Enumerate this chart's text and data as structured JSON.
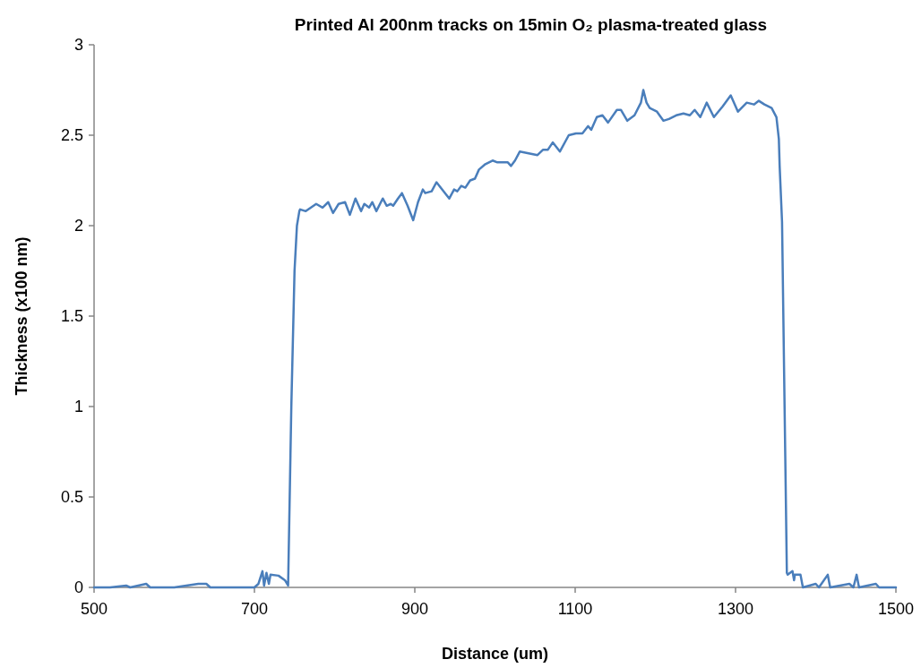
{
  "chart_data": {
    "type": "line",
    "title": "Printed Al 200nm tracks on 15min O₂ plasma-treated glass",
    "xlabel": "Distance (um)",
    "ylabel": "Thickness (x100 nm)",
    "xlim": [
      500,
      1500
    ],
    "xticks": [
      500,
      700,
      900,
      1100,
      1300,
      1500
    ],
    "ylim": [
      0,
      3
    ],
    "yticks": [
      0,
      0.5,
      1,
      1.5,
      2,
      2.5,
      3
    ],
    "grid": false,
    "marker": "none",
    "line_style": "solid",
    "x": [
      500,
      520,
      540,
      545,
      565,
      570,
      600,
      630,
      640,
      645,
      700,
      705,
      710,
      712,
      715,
      718,
      720,
      730,
      738,
      742,
      746,
      750,
      753,
      756,
      757,
      764,
      777,
      785,
      792,
      798,
      805,
      813,
      819,
      826,
      833,
      837,
      843,
      847,
      852,
      860,
      865,
      870,
      873,
      879,
      884,
      891,
      898,
      904,
      910,
      913,
      921,
      927,
      934,
      943,
      949,
      953,
      958,
      963,
      969,
      975,
      980,
      988,
      997,
      1003,
      1016,
      1020,
      1025,
      1031,
      1053,
      1060,
      1066,
      1072,
      1081,
      1092,
      1101,
      1109,
      1116,
      1120,
      1127,
      1134,
      1141,
      1152,
      1157,
      1165,
      1174,
      1182,
      1185,
      1189,
      1193,
      1202,
      1210,
      1217,
      1226,
      1235,
      1243,
      1249,
      1256,
      1264,
      1273,
      1284,
      1294,
      1303,
      1314,
      1323,
      1329,
      1336,
      1345,
      1351,
      1354,
      1355,
      1358,
      1364,
      1365,
      1371,
      1373,
      1374,
      1381,
      1384,
      1400,
      1404,
      1415,
      1418,
      1442,
      1447,
      1451,
      1454,
      1475,
      1479,
      1500
    ],
    "series": [
      {
        "color": "#4a7ebb",
        "values": [
          0,
          0,
          0.01,
          0,
          0.02,
          0,
          0,
          0.02,
          0.02,
          0,
          0,
          0.02,
          0.09,
          0.01,
          0.08,
          0.02,
          0.07,
          0.065,
          0.04,
          0.01,
          1.0,
          1.75,
          2.0,
          2.08,
          2.09,
          2.08,
          2.12,
          2.1,
          2.13,
          2.07,
          2.12,
          2.13,
          2.06,
          2.15,
          2.08,
          2.12,
          2.1,
          2.13,
          2.08,
          2.15,
          2.11,
          2.12,
          2.11,
          2.15,
          2.18,
          2.11,
          2.03,
          2.13,
          2.2,
          2.18,
          2.19,
          2.24,
          2.2,
          2.15,
          2.2,
          2.19,
          2.22,
          2.21,
          2.25,
          2.26,
          2.31,
          2.34,
          2.36,
          2.35,
          2.35,
          2.33,
          2.36,
          2.41,
          2.39,
          2.42,
          2.42,
          2.46,
          2.41,
          2.5,
          2.51,
          2.51,
          2.55,
          2.53,
          2.6,
          2.61,
          2.57,
          2.64,
          2.64,
          2.58,
          2.61,
          2.68,
          2.75,
          2.68,
          2.65,
          2.63,
          2.58,
          2.59,
          2.61,
          2.62,
          2.61,
          2.64,
          2.6,
          2.68,
          2.6,
          2.66,
          2.72,
          2.63,
          2.68,
          2.67,
          2.69,
          2.67,
          2.65,
          2.6,
          2.48,
          2.33,
          2.02,
          0.08,
          0.07,
          0.09,
          0.04,
          0.07,
          0.07,
          0,
          0.02,
          0,
          0.07,
          0,
          0.02,
          0,
          0.07,
          0,
          0.02,
          0,
          0
        ]
      }
    ]
  }
}
